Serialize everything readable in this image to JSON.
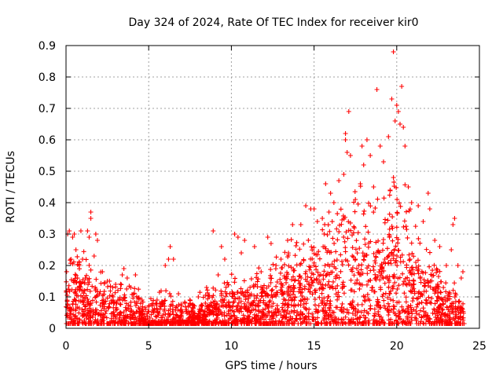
{
  "chart_data": {
    "type": "scatter",
    "title": "Day 324 of 2024, Rate Of TEC Index for receiver kir0",
    "xlabel": "GPS time / hours",
    "ylabel": "ROTI / TECUs",
    "xlim": [
      0,
      25
    ],
    "ylim": [
      0,
      0.9
    ],
    "xticks": [
      "0",
      "5",
      "10",
      "15",
      "20",
      "25"
    ],
    "yticks": [
      "0",
      "0.1",
      "0.2",
      "0.3",
      "0.4",
      "0.5",
      "0.6",
      "0.7",
      "0.8",
      "0.9"
    ],
    "grid": true,
    "marker": "+",
    "color": "#ff0000",
    "series": [
      {
        "name": "ROTI",
        "points": [
          [
            0.1,
            0.3
          ],
          [
            0.2,
            0.31
          ],
          [
            0.4,
            0.29
          ],
          [
            0.5,
            0.3
          ],
          [
            0.3,
            0.22
          ],
          [
            0.6,
            0.25
          ],
          [
            0.8,
            0.21
          ],
          [
            1.0,
            0.22
          ],
          [
            0.9,
            0.31
          ],
          [
            1.3,
            0.31
          ],
          [
            1.4,
            0.29
          ],
          [
            1.5,
            0.37
          ],
          [
            1.5,
            0.35
          ],
          [
            1.7,
            0.23
          ],
          [
            1.8,
            0.3
          ],
          [
            1.9,
            0.28
          ],
          [
            2.2,
            0.18
          ],
          [
            2.5,
            0.15
          ],
          [
            3.0,
            0.14
          ],
          [
            3.4,
            0.17
          ],
          [
            3.5,
            0.19
          ],
          [
            3.7,
            0.16
          ],
          [
            4.2,
            0.17
          ],
          [
            4.6,
            0.09
          ],
          [
            5.0,
            0.07
          ],
          [
            5.5,
            0.06
          ],
          [
            6.0,
            0.2
          ],
          [
            6.2,
            0.22
          ],
          [
            6.3,
            0.26
          ],
          [
            6.5,
            0.22
          ],
          [
            6.8,
            0.11
          ],
          [
            7.2,
            0.08
          ],
          [
            7.5,
            0.08
          ],
          [
            8.0,
            0.1
          ],
          [
            8.5,
            0.13
          ],
          [
            8.9,
            0.31
          ],
          [
            9.2,
            0.17
          ],
          [
            9.4,
            0.26
          ],
          [
            9.6,
            0.22
          ],
          [
            10.2,
            0.3
          ],
          [
            10.4,
            0.29
          ],
          [
            10.6,
            0.24
          ],
          [
            10.8,
            0.28
          ],
          [
            11.4,
            0.26
          ],
          [
            11.8,
            0.18
          ],
          [
            12.2,
            0.29
          ],
          [
            12.4,
            0.27
          ],
          [
            12.7,
            0.2
          ],
          [
            13.0,
            0.22
          ],
          [
            13.4,
            0.28
          ],
          [
            13.7,
            0.33
          ],
          [
            14.2,
            0.33
          ],
          [
            14.5,
            0.39
          ],
          [
            14.8,
            0.38
          ],
          [
            15.0,
            0.38
          ],
          [
            15.2,
            0.34
          ],
          [
            15.5,
            0.35
          ],
          [
            15.7,
            0.46
          ],
          [
            15.9,
            0.37
          ],
          [
            16.0,
            0.43
          ],
          [
            16.2,
            0.4
          ],
          [
            16.5,
            0.47
          ],
          [
            16.8,
            0.49
          ],
          [
            16.9,
            0.62
          ],
          [
            16.9,
            0.6
          ],
          [
            17.0,
            0.56
          ],
          [
            17.1,
            0.69
          ],
          [
            17.2,
            0.55
          ],
          [
            17.5,
            0.41
          ],
          [
            17.8,
            0.46
          ],
          [
            17.9,
            0.58
          ],
          [
            18.2,
            0.6
          ],
          [
            18.0,
            0.52
          ],
          [
            18.4,
            0.55
          ],
          [
            18.6,
            0.45
          ],
          [
            18.8,
            0.76
          ],
          [
            19.0,
            0.58
          ],
          [
            19.2,
            0.53
          ],
          [
            19.5,
            0.61
          ],
          [
            19.6,
            0.44
          ],
          [
            19.8,
            0.48
          ],
          [
            19.7,
            0.73
          ],
          [
            19.8,
            0.88
          ],
          [
            19.9,
            0.66
          ],
          [
            20.0,
            0.71
          ],
          [
            20.1,
            0.69
          ],
          [
            20.2,
            0.65
          ],
          [
            20.3,
            0.77
          ],
          [
            20.4,
            0.64
          ],
          [
            20.5,
            0.58
          ],
          [
            20.7,
            0.45
          ],
          [
            20.9,
            0.4
          ],
          [
            21.3,
            0.39
          ],
          [
            21.6,
            0.34
          ],
          [
            21.9,
            0.43
          ],
          [
            22.0,
            0.38
          ],
          [
            22.3,
            0.28
          ],
          [
            22.6,
            0.26
          ],
          [
            23.0,
            0.2
          ],
          [
            23.3,
            0.25
          ],
          [
            23.4,
            0.33
          ],
          [
            23.5,
            0.35
          ],
          [
            23.7,
            0.2
          ],
          [
            24.0,
            0.18
          ],
          [
            23.9,
            0.16
          ]
        ]
      }
    ]
  }
}
